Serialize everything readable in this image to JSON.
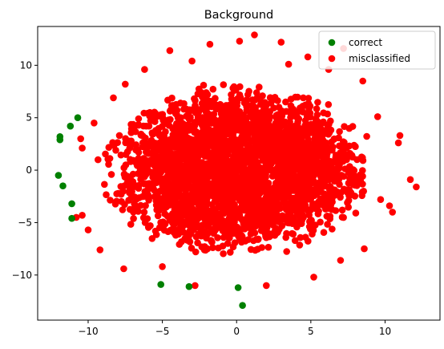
{
  "chart_data": {
    "type": "scatter",
    "title": "Background",
    "xlabel": "",
    "ylabel": "",
    "xlim": [
      -13.4,
      13.7
    ],
    "ylim": [
      -14.3,
      13.7
    ],
    "xticks": [
      -10,
      -5,
      0,
      5,
      10
    ],
    "yticks": [
      -10,
      -5,
      0,
      5,
      10
    ],
    "grid": false,
    "legend_position": "top-right",
    "series": [
      {
        "name": "correct",
        "color": "#008000",
        "points": [
          [
            -10.7,
            5.0
          ],
          [
            -11.2,
            4.2
          ],
          [
            -11.9,
            3.2
          ],
          [
            -11.9,
            2.9
          ],
          [
            -12.0,
            -0.5
          ],
          [
            -11.7,
            -1.5
          ],
          [
            -11.1,
            -3.2
          ],
          [
            -11.1,
            -4.6
          ],
          [
            -5.1,
            -10.9
          ],
          [
            -3.2,
            -11.1
          ],
          [
            0.1,
            -11.2
          ],
          [
            0.4,
            -12.9
          ]
        ]
      },
      {
        "name": "misclassified",
        "color": "#ff0000",
        "points": [
          [
            1.2,
            12.9
          ],
          [
            3.0,
            12.2
          ],
          [
            0.2,
            12.3
          ],
          [
            -1.8,
            12.0
          ],
          [
            4.8,
            10.8
          ],
          [
            7.2,
            11.6
          ],
          [
            -4.5,
            11.4
          ],
          [
            -7.5,
            8.2
          ],
          [
            -10.5,
            3.0
          ],
          [
            -10.4,
            -4.3
          ],
          [
            -10.0,
            -5.7
          ],
          [
            -9.2,
            -7.6
          ],
          [
            -5.0,
            -9.2
          ],
          [
            -2.8,
            -11.0
          ],
          [
            2.0,
            -11.0
          ],
          [
            5.2,
            -10.2
          ],
          [
            8.6,
            -7.5
          ],
          [
            10.5,
            -4.0
          ],
          [
            12.1,
            -1.6
          ],
          [
            11.7,
            -0.9
          ],
          [
            10.9,
            2.6
          ],
          [
            9.5,
            5.1
          ],
          [
            8.5,
            8.5
          ],
          [
            6.2,
            9.6
          ],
          [
            -10.4,
            2.1
          ],
          [
            -10.8,
            -4.5
          ],
          [
            11.0,
            3.3
          ],
          [
            10.3,
            -3.4
          ],
          [
            7.0,
            -8.6
          ],
          [
            -7.6,
            -9.4
          ],
          [
            -8.3,
            6.9
          ],
          [
            -9.6,
            4.5
          ],
          [
            9.7,
            -2.8
          ],
          [
            -6.2,
            9.6
          ],
          [
            3.5,
            10.1
          ],
          [
            -3.0,
            10.4
          ]
        ]
      }
    ],
    "dense_cloud": {
      "series": "misclassified",
      "center": [
        0,
        0
      ],
      "radius_x": 9.6,
      "radius_y": 8.5,
      "approx_points": 3000
    }
  }
}
